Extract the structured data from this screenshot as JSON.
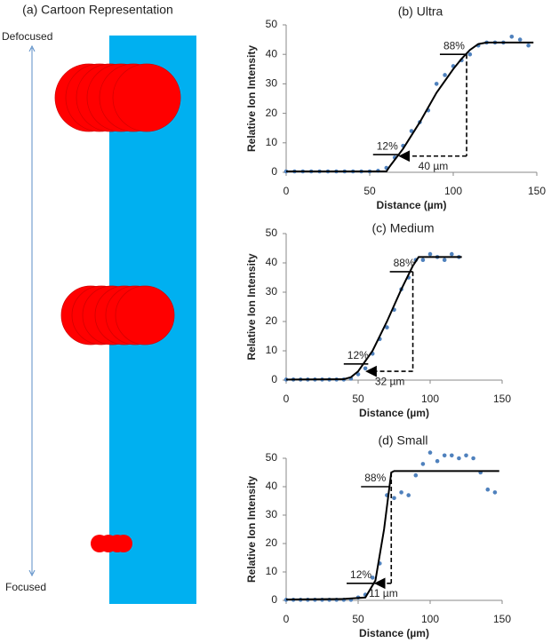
{
  "cartoon": {
    "title": "(a) Cartoon Representation",
    "top_label": "Defocused",
    "bottom_label": "Focused"
  },
  "chart_data": [
    {
      "type": "scatter",
      "title": "(b) Ultra",
      "xlabel": "Distance (µm)",
      "ylabel": "Relative Ion Intensity",
      "xlim": [
        0,
        150
      ],
      "ylim": [
        0,
        50
      ],
      "xticks": [
        0,
        50,
        100,
        150
      ],
      "yticks": [
        0,
        10,
        20,
        30,
        40,
        50
      ],
      "series": [
        {
          "type": "scatter",
          "color": "#4f81bd",
          "x": [
            0,
            5,
            10,
            15,
            20,
            25,
            30,
            35,
            40,
            45,
            50,
            55,
            60,
            65,
            70,
            75,
            80,
            85,
            90,
            95,
            100,
            105,
            110,
            115,
            120,
            125,
            130,
            135,
            140,
            145
          ],
          "values": [
            0.3,
            0.3,
            0.3,
            0.3,
            0.3,
            0.3,
            0.3,
            0.3,
            0.3,
            0.3,
            0.3,
            0.5,
            1.5,
            5,
            9,
            14,
            17,
            21,
            30,
            33,
            36,
            38,
            40,
            43,
            44,
            44,
            44,
            46,
            45,
            43
          ]
        },
        {
          "type": "line",
          "color": "#000000",
          "x": [
            0,
            60,
            62,
            70,
            80,
            90,
            100,
            105,
            110,
            115,
            120,
            148
          ],
          "values": [
            0.3,
            0.3,
            2,
            8,
            17,
            27,
            35,
            38.5,
            41.5,
            43.5,
            44,
            44
          ]
        }
      ],
      "reference_lines": [
        {
          "label": "12%",
          "y": 6,
          "x": [
            52,
            68
          ]
        },
        {
          "label": "88%",
          "y": 40,
          "x": [
            92,
            108
          ]
        }
      ],
      "arrow": {
        "label": "40 µm",
        "x": [
          68,
          108
        ],
        "y": 5.5,
        "top": 40
      }
    },
    {
      "type": "scatter",
      "title": "(c) Medium",
      "xlabel": "Distance (µm)",
      "ylabel": "Relative Ion Intensity",
      "xlim": [
        0,
        150
      ],
      "ylim": [
        0,
        50
      ],
      "xticks": [
        0,
        50,
        100,
        150
      ],
      "yticks": [
        0,
        10,
        20,
        30,
        40,
        50
      ],
      "series": [
        {
          "type": "scatter",
          "color": "#4f81bd",
          "x": [
            0,
            5,
            10,
            15,
            20,
            25,
            30,
            35,
            40,
            45,
            50,
            55,
            60,
            65,
            70,
            75,
            80,
            85,
            90,
            95,
            100,
            105,
            110,
            115,
            120
          ],
          "values": [
            0.2,
            0.2,
            0.2,
            0.2,
            0.2,
            0.2,
            0.2,
            0.2,
            0.2,
            0.5,
            2,
            4,
            9,
            14,
            18,
            24,
            31,
            35,
            41,
            41,
            43,
            42,
            41,
            43,
            42
          ]
        },
        {
          "type": "line",
          "color": "#000000",
          "x": [
            0,
            40,
            45,
            50,
            60,
            70,
            80,
            88,
            92,
            122
          ],
          "values": [
            0.2,
            0.3,
            1,
            3,
            10,
            20,
            31,
            39,
            42,
            42
          ]
        }
      ],
      "reference_lines": [
        {
          "label": "12%",
          "y": 5.5,
          "x": [
            40,
            57
          ]
        },
        {
          "label": "88%",
          "y": 37,
          "x": [
            72,
            88
          ]
        }
      ],
      "arrow": {
        "label": "32 µm",
        "x": [
          56,
          88
        ],
        "y": 3,
        "top": 37
      }
    },
    {
      "type": "scatter",
      "title": "(d) Small",
      "xlabel": "Distance (µm)",
      "ylabel": "Relative Ion Intensity",
      "xlim": [
        0,
        150
      ],
      "ylim": [
        0,
        50
      ],
      "xticks": [
        0,
        50,
        100,
        150
      ],
      "yticks": [
        0,
        10,
        20,
        30,
        40,
        50
      ],
      "series": [
        {
          "type": "scatter",
          "color": "#4f81bd",
          "x": [
            0,
            5,
            10,
            15,
            20,
            25,
            30,
            35,
            40,
            45,
            50,
            55,
            60,
            65,
            70,
            75,
            80,
            85,
            90,
            95,
            100,
            105,
            110,
            115,
            120,
            125,
            130,
            135,
            140,
            145
          ],
          "values": [
            0.2,
            0.2,
            0.2,
            0.2,
            0.2,
            0.2,
            0.2,
            0.2,
            0.2,
            0.2,
            1,
            2,
            8,
            13,
            37,
            36,
            38,
            37,
            44,
            48,
            52,
            49,
            51,
            51,
            50,
            51,
            50,
            45,
            39,
            38
          ]
        },
        {
          "type": "line",
          "color": "#000000",
          "x": [
            0,
            40,
            55,
            62,
            68,
            73,
            75,
            148
          ],
          "values": [
            0.3,
            0.5,
            1,
            7,
            25,
            45,
            45.5,
            45.5
          ]
        }
      ],
      "reference_lines": [
        {
          "label": "12%",
          "y": 6,
          "x": [
            42,
            62
          ]
        },
        {
          "label": "88%",
          "y": 40,
          "x": [
            52,
            72
          ]
        }
      ],
      "arrow": {
        "label": "11 µm",
        "x": [
          62,
          73
        ],
        "y": 6,
        "top": 45
      }
    }
  ]
}
